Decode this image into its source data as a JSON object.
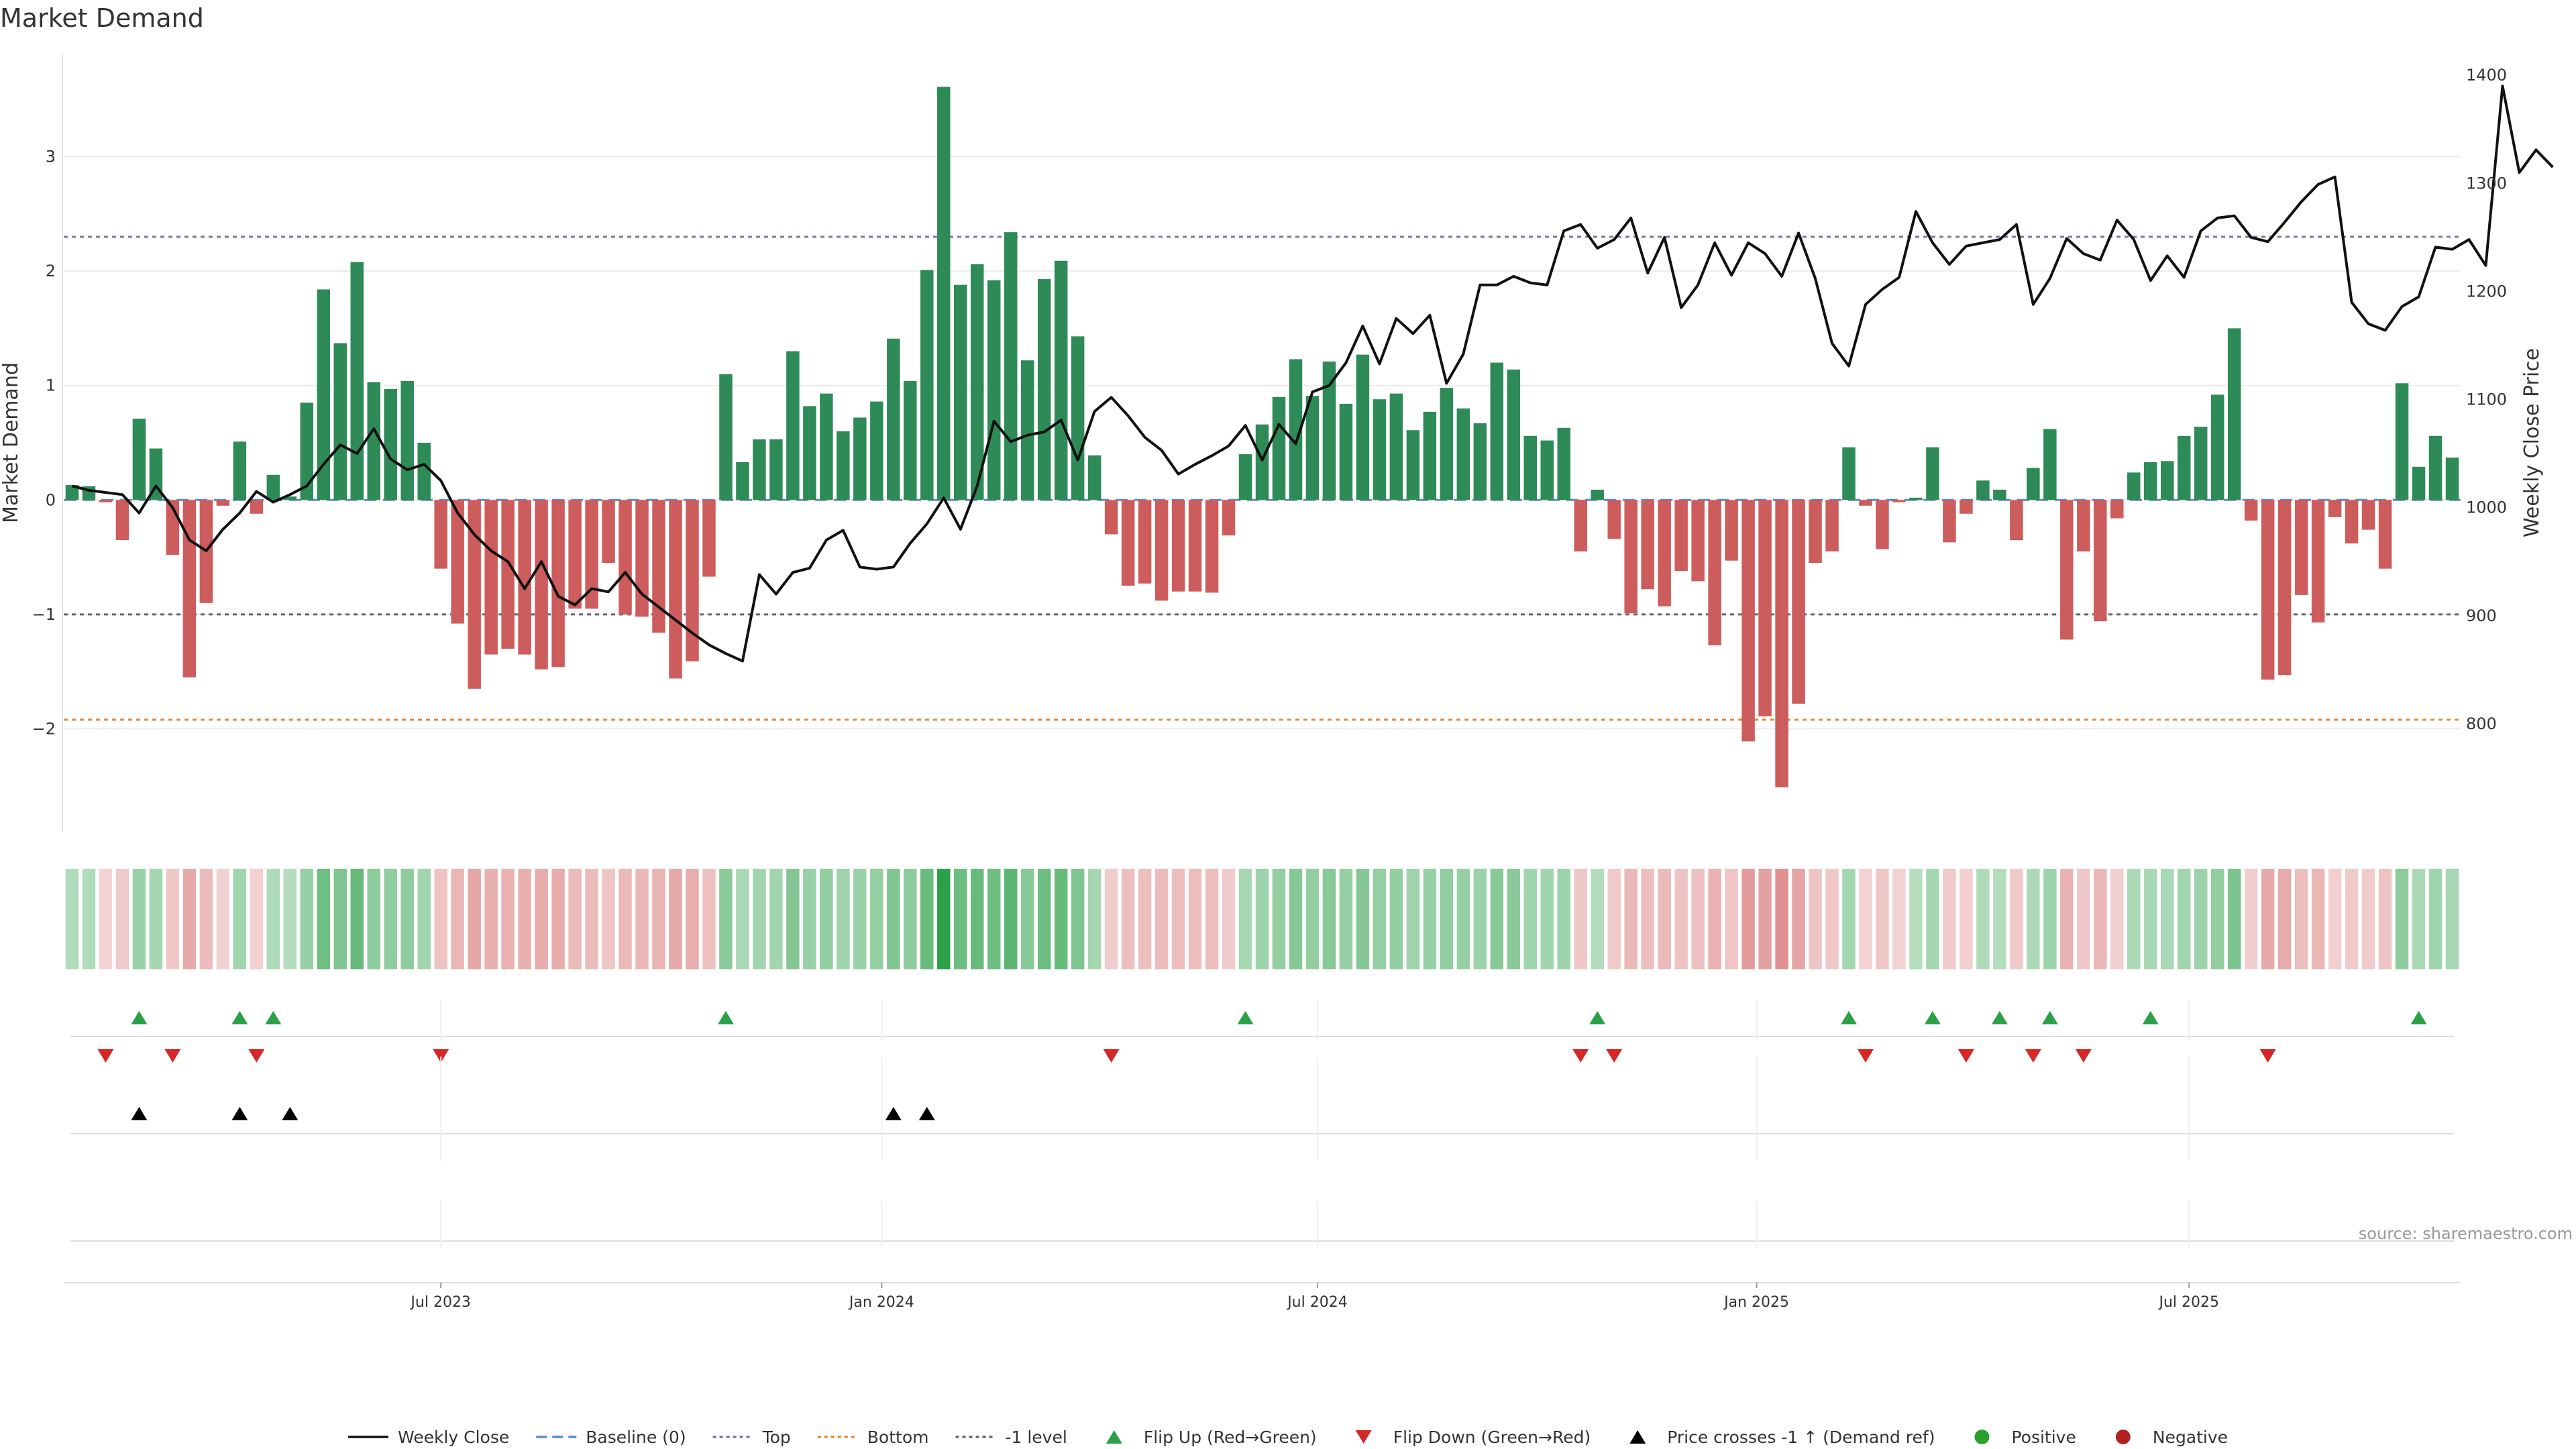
{
  "chart_data": {
    "type": "bar",
    "title": "Market Demand",
    "ylabel_left": "Market Demand",
    "ylabel_right": "Weekly Close Price",
    "source": "source: sharemaestro.com",
    "ylim_left": [
      -2.9,
      3.9
    ],
    "ylim_right": [
      700,
      1420
    ],
    "left_ticks": [
      {
        "value": 3,
        "label": "3"
      },
      {
        "value": 2,
        "label": "2"
      },
      {
        "value": 1,
        "label": "1"
      },
      {
        "value": 0,
        "label": "0"
      },
      {
        "value": -1,
        "label": "−1"
      },
      {
        "value": -2,
        "label": "−2"
      }
    ],
    "right_ticks": [
      {
        "value": 1400,
        "label": "1400"
      },
      {
        "value": 1300,
        "label": "1300"
      },
      {
        "value": 1200,
        "label": "1200"
      },
      {
        "value": 1100,
        "label": "1100"
      },
      {
        "value": 1000,
        "label": "1000"
      },
      {
        "value": 900,
        "label": "900"
      },
      {
        "value": 800,
        "label": "800"
      }
    ],
    "x_ticks": [
      {
        "index": 22,
        "label": "Jul 2023"
      },
      {
        "index": 48.3,
        "label": "Jan 2024"
      },
      {
        "index": 74.3,
        "label": "Jul 2024"
      },
      {
        "index": 100.5,
        "label": "Jan 2025"
      },
      {
        "index": 126.3,
        "label": "Jul 2025"
      }
    ],
    "reference_lines": {
      "top": 2.3,
      "bottom": -1.92,
      "minus_one": -1,
      "baseline": 0
    },
    "demand": [
      0.13,
      0.12,
      -0.02,
      -0.35,
      0.71,
      0.45,
      -0.48,
      -1.55,
      -0.9,
      -0.05,
      0.51,
      -0.12,
      0.22,
      0.03,
      0.85,
      1.84,
      1.37,
      2.08,
      1.03,
      0.97,
      1.04,
      0.5,
      -0.6,
      -1.08,
      -1.65,
      -1.35,
      -1.3,
      -1.35,
      -1.48,
      -1.46,
      -0.95,
      -0.95,
      -0.55,
      -1,
      -1.02,
      -1.16,
      -1.56,
      -1.41,
      -0.67,
      1.1,
      0.33,
      0.53,
      0.53,
      1.3,
      0.82,
      0.93,
      0.6,
      0.72,
      0.86,
      1.41,
      1.04,
      2.01,
      3.61,
      1.88,
      2.06,
      1.92,
      2.34,
      1.22,
      1.93,
      2.09,
      1.43,
      0.39,
      -0.3,
      -0.75,
      -0.73,
      -0.88,
      -0.8,
      -0.8,
      -0.81,
      -0.31,
      0.4,
      0.66,
      0.9,
      1.23,
      0.91,
      1.21,
      0.84,
      1.27,
      0.88,
      0.93,
      0.61,
      0.77,
      0.98,
      0.8,
      0.67,
      1.2,
      1.14,
      0.56,
      0.52,
      0.63,
      -0.45,
      0.09,
      -0.34,
      -0.99,
      -0.78,
      -0.93,
      -0.62,
      -0.71,
      -1.27,
      -0.53,
      -2.11,
      -1.89,
      -2.51,
      -1.78,
      -0.55,
      -0.45,
      0.46,
      -0.05,
      -0.43,
      -0.02,
      0.02,
      0.46,
      -0.37,
      -0.12,
      0.17,
      0.09,
      -0.35,
      0.28,
      0.62,
      -1.22,
      -0.45,
      -1.06,
      -0.16,
      0.24,
      0.33,
      0.34,
      0.56,
      0.64,
      0.92,
      1.5,
      -0.18,
      -1.57,
      -1.53,
      -0.83,
      -1.07,
      -0.15,
      -0.38,
      -0.26,
      -0.6,
      1.02,
      0.29,
      0.56,
      0.37
    ],
    "price": [
      1020,
      1016,
      1014,
      1012,
      995,
      1020,
      1000,
      970,
      960,
      980,
      995,
      1015,
      1005,
      1012,
      1020,
      1040,
      1058,
      1050,
      1073,
      1045,
      1035,
      1040,
      1025,
      995,
      975,
      960,
      950,
      925,
      950,
      918,
      910,
      925,
      922,
      940,
      920,
      908,
      896,
      884,
      873,
      865,
      858,
      938,
      920,
      940,
      944,
      970,
      979,
      945,
      943,
      945,
      967,
      985,
      1009,
      980,
      1020,
      1080,
      1061,
      1067,
      1070,
      1081,
      1044,
      1089,
      1102,
      1085,
      1065,
      1053,
      1031,
      1040,
      1048,
      1057,
      1076,
      1044,
      1077,
      1059,
      1107,
      1113,
      1134,
      1168,
      1133,
      1175,
      1161,
      1178,
      1115,
      1142,
      1206,
      1206,
      1214,
      1208,
      1206,
      1256,
      1262,
      1240,
      1248,
      1268,
      1217,
      1250,
      1185,
      1206,
      1245,
      1215,
      1245,
      1235,
      1214,
      1254,
      1212,
      1152,
      1131,
      1188,
      1202,
      1213,
      1274,
      1245,
      1225,
      1242,
      1245,
      1248,
      1262,
      1188,
      1212,
      1249,
      1235,
      1229,
      1266,
      1248,
      1210,
      1233,
      1213,
      1256,
      1268,
      1270,
      1250,
      1246,
      1264,
      1283,
      1299,
      1306,
      1190,
      1170,
      1164,
      1186,
      1195,
      1241,
      1239,
      1248,
      1224,
      1390,
      1310,
      1331,
      1315
    ]
  },
  "legend": [
    {
      "label": "Weekly Close",
      "kind": "line-solid",
      "color": "#111111"
    },
    {
      "label": "Baseline (0)",
      "kind": "line-dash",
      "color": "#5b8bc9"
    },
    {
      "label": "Top",
      "kind": "line-dot",
      "color": "#7a76a8"
    },
    {
      "label": "Bottom",
      "kind": "line-dot",
      "color": "#e08a3c"
    },
    {
      "label": "-1 level",
      "kind": "line-dot",
      "color": "#666677"
    },
    {
      "label": "Flip Up (Red→Green)",
      "kind": "tri-up",
      "color": "#2ca048"
    },
    {
      "label": "Flip Down (Green→Red)",
      "kind": "tri-down",
      "color": "#d62728"
    },
    {
      "label": "Price crosses -1 ↑ (Demand ref)",
      "kind": "tri-up",
      "color": "#000000"
    },
    {
      "label": "Positive",
      "kind": "dot",
      "color": "#2ca02c"
    },
    {
      "label": "Negative",
      "kind": "dot",
      "color": "#b22222"
    }
  ],
  "flip_up_indices": [
    4,
    10,
    12,
    39,
    70,
    91,
    106,
    111,
    115,
    118,
    124,
    140
  ],
  "flip_down_indices": [
    2,
    6,
    11,
    22,
    62,
    90,
    92,
    107,
    113,
    117,
    120,
    131
  ],
  "price_cross_indices": [
    4,
    10,
    13,
    49,
    51
  ],
  "colors": {
    "positive_bar": "#2e8b57",
    "negative_bar": "#cd5c5c",
    "price_line": "#111111",
    "top_line": "#7a76a8",
    "bottom_line": "#e08a3c",
    "minus_one_line": "#666677",
    "baseline": "#5b8bc9",
    "flip_up": "#2ca048",
    "flip_down": "#d62728",
    "price_cross": "#000000"
  }
}
